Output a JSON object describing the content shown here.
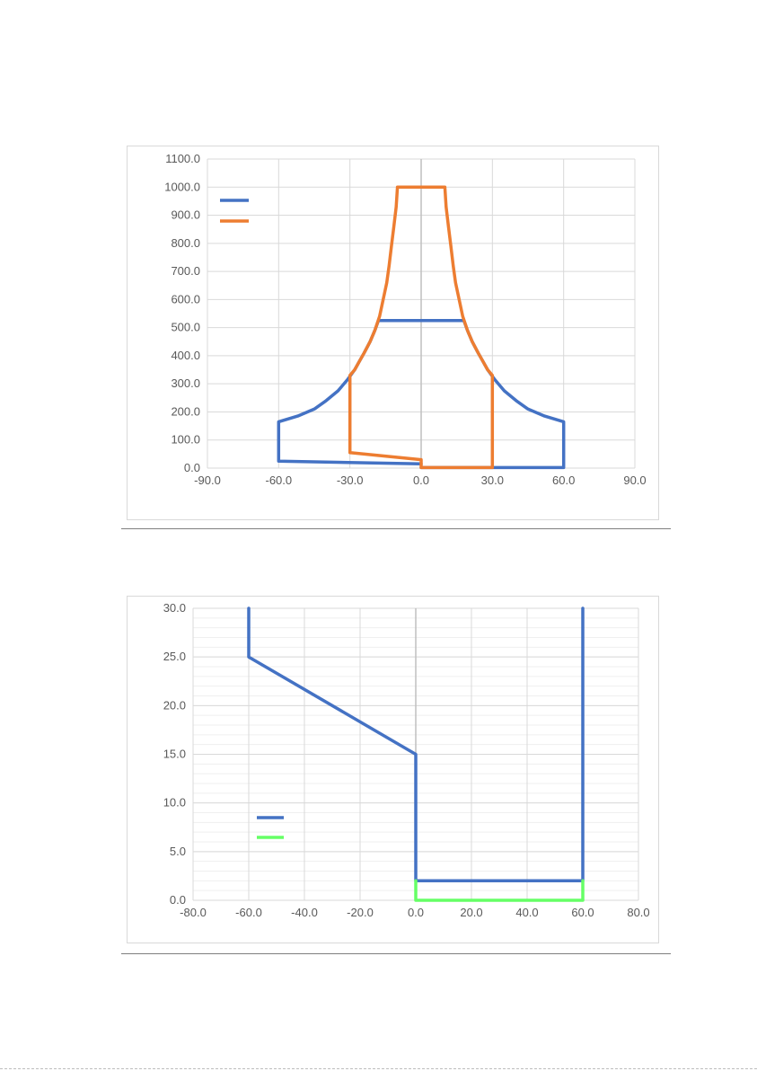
{
  "chart_data": [
    {
      "type": "line",
      "title": "",
      "xlabel": "",
      "ylabel": "",
      "xlim": [
        -90,
        90
      ],
      "ylim": [
        0,
        1100
      ],
      "x_ticks": [
        "-90.0",
        "-60.0",
        "-30.0",
        "0.0",
        "30.0",
        "60.0",
        "90.0"
      ],
      "y_ticks": [
        "0.0",
        "100.0",
        "200.0",
        "300.0",
        "400.0",
        "500.0",
        "600.0",
        "700.0",
        "800.0",
        "900.0",
        "1000.0",
        "1100.0"
      ],
      "grid": true,
      "minor_grid": false,
      "legend": "top-left",
      "series": [
        {
          "color": "#4472c4",
          "points": [
            [
              0,
              15
            ],
            [
              -60,
              25
            ],
            [
              -60,
              165
            ],
            [
              -52,
              185
            ],
            [
              -45,
              210
            ],
            [
              -40,
              240
            ],
            [
              -35,
              275
            ],
            [
              -31,
              315
            ],
            [
              -28,
              350
            ],
            [
              -26,
              380
            ],
            [
              -24,
              410
            ],
            [
              -21.5,
              450
            ],
            [
              -19.5,
              490
            ],
            [
              -18,
              525
            ],
            [
              18,
              525
            ],
            [
              19.5,
              490
            ],
            [
              21.5,
              450
            ],
            [
              24,
              410
            ],
            [
              26,
              380
            ],
            [
              28,
              350
            ],
            [
              31,
              315
            ],
            [
              35,
              275
            ],
            [
              40,
              240
            ],
            [
              45,
              210
            ],
            [
              52,
              185
            ],
            [
              60,
              165
            ],
            [
              60,
              2
            ],
            [
              0,
              2
            ]
          ]
        },
        {
          "color": "#ed7d31",
          "points": [
            [
              0,
              2
            ],
            [
              30,
              2
            ],
            [
              30,
              330
            ],
            [
              28,
              350
            ],
            [
              26,
              380
            ],
            [
              24,
              410
            ],
            [
              21.5,
              450
            ],
            [
              19.5,
              490
            ],
            [
              17.5,
              540
            ],
            [
              16,
              600
            ],
            [
              14.5,
              660
            ],
            [
              13.5,
              720
            ],
            [
              12.5,
              790
            ],
            [
              11.5,
              860
            ],
            [
              10.5,
              930
            ],
            [
              10,
              1000
            ],
            [
              -10,
              1000
            ],
            [
              -10.5,
              930
            ],
            [
              -11.5,
              860
            ],
            [
              -12.5,
              790
            ],
            [
              -13.5,
              720
            ],
            [
              -14.5,
              660
            ],
            [
              -16,
              600
            ],
            [
              -17.5,
              540
            ],
            [
              -19.5,
              490
            ],
            [
              -21.5,
              450
            ],
            [
              -24,
              410
            ],
            [
              -26,
              380
            ],
            [
              -28,
              350
            ],
            [
              -30,
              330
            ],
            [
              -30,
              55
            ],
            [
              0,
              30
            ],
            [
              0,
              2
            ]
          ]
        }
      ]
    },
    {
      "type": "line",
      "title": "",
      "xlabel": "",
      "ylabel": "",
      "xlim": [
        -80,
        80
      ],
      "ylim": [
        0,
        30
      ],
      "x_ticks": [
        "-80.0",
        "-60.0",
        "-40.0",
        "-20.0",
        "0.0",
        "20.0",
        "40.0",
        "60.0",
        "80.0"
      ],
      "y_ticks": [
        "0.0",
        "5.0",
        "10.0",
        "15.0",
        "20.0",
        "25.0",
        "30.0"
      ],
      "grid": true,
      "minor_grid": true,
      "legend": "center-left",
      "series": [
        {
          "color": "#4472c4",
          "points": [
            [
              -60,
              30
            ],
            [
              -60,
              25
            ],
            [
              0,
              15
            ],
            [
              0,
              2
            ],
            [
              60,
              2
            ],
            [
              60,
              30
            ]
          ]
        },
        {
          "color": "#66ff66",
          "points": [
            [
              0,
              2
            ],
            [
              0,
              0
            ],
            [
              60,
              0
            ],
            [
              60,
              2
            ]
          ]
        }
      ]
    }
  ]
}
